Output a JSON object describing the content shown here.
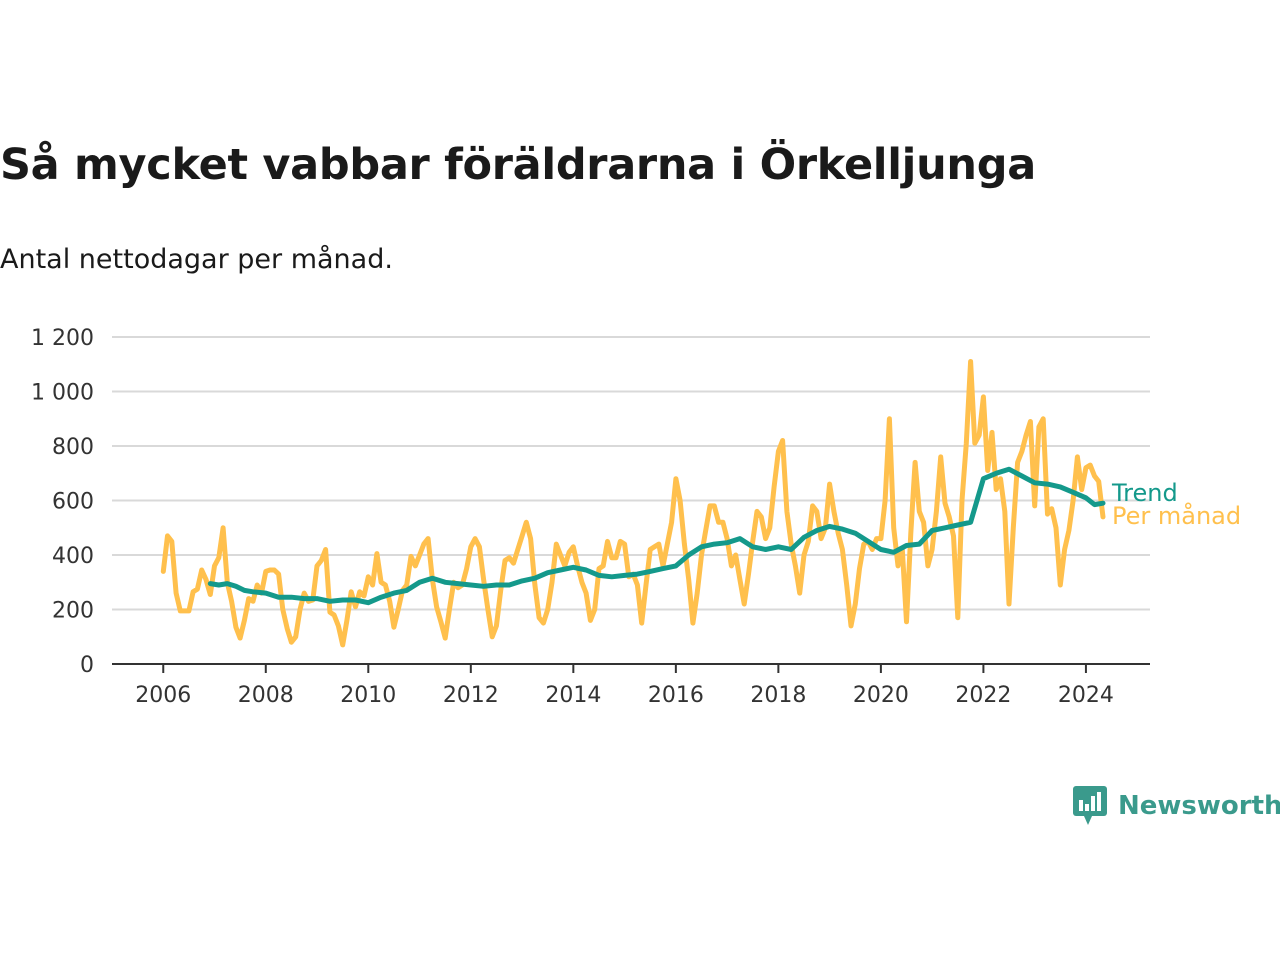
{
  "title": "Så mycket vabbar föräldrarna i Örkelljunga",
  "subtitle": "Antal nettodagar per månad.",
  "brand": {
    "name": "Newsworthy",
    "color": "#3a9a8c"
  },
  "chart_data": {
    "type": "line",
    "title": "Så mycket vabbar föräldrarna i Örkelljunga",
    "subtitle": "Antal nettodagar per månad.",
    "ylim": [
      0,
      1200
    ],
    "yticks": [
      0,
      200,
      400,
      600,
      800,
      1000,
      1200
    ],
    "ytick_labels": [
      "0",
      "200",
      "400",
      "600",
      "800",
      "1 000",
      "1 200"
    ],
    "xlim": [
      2005.0,
      2025.25
    ],
    "xticks": [
      2006,
      2008,
      2010,
      2012,
      2014,
      2016,
      2018,
      2020,
      2022,
      2024
    ],
    "xtick_labels": [
      "2006",
      "2008",
      "2010",
      "2012",
      "2014",
      "2016",
      "2018",
      "2020",
      "2022",
      "2024"
    ],
    "grid": true,
    "legend_position": "right",
    "series": [
      {
        "name": "Per månad",
        "color": "#ffc04d",
        "x": [
          2006.0,
          2006.083,
          2006.167,
          2006.25,
          2006.333,
          2006.417,
          2006.5,
          2006.583,
          2006.667,
          2006.75,
          2006.833,
          2006.917,
          2007.0,
          2007.083,
          2007.167,
          2007.25,
          2007.333,
          2007.417,
          2007.5,
          2007.583,
          2007.667,
          2007.75,
          2007.833,
          2007.917,
          2008.0,
          2008.083,
          2008.167,
          2008.25,
          2008.333,
          2008.417,
          2008.5,
          2008.583,
          2008.667,
          2008.75,
          2008.833,
          2008.917,
          2009.0,
          2009.083,
          2009.167,
          2009.25,
          2009.333,
          2009.417,
          2009.5,
          2009.583,
          2009.667,
          2009.75,
          2009.833,
          2009.917,
          2010.0,
          2010.083,
          2010.167,
          2010.25,
          2010.333,
          2010.417,
          2010.5,
          2010.583,
          2010.667,
          2010.75,
          2010.833,
          2010.917,
          2011.0,
          2011.083,
          2011.167,
          2011.25,
          2011.333,
          2011.417,
          2011.5,
          2011.583,
          2011.667,
          2011.75,
          2011.833,
          2011.917,
          2012.0,
          2012.083,
          2012.167,
          2012.25,
          2012.333,
          2012.417,
          2012.5,
          2012.583,
          2012.667,
          2012.75,
          2012.833,
          2012.917,
          2013.0,
          2013.083,
          2013.167,
          2013.25,
          2013.333,
          2013.417,
          2013.5,
          2013.583,
          2013.667,
          2013.75,
          2013.833,
          2013.917,
          2014.0,
          2014.083,
          2014.167,
          2014.25,
          2014.333,
          2014.417,
          2014.5,
          2014.583,
          2014.667,
          2014.75,
          2014.833,
          2014.917,
          2015.0,
          2015.083,
          2015.167,
          2015.25,
          2015.333,
          2015.417,
          2015.5,
          2015.583,
          2015.667,
          2015.75,
          2015.833,
          2015.917,
          2016.0,
          2016.083,
          2016.167,
          2016.25,
          2016.333,
          2016.417,
          2016.5,
          2016.583,
          2016.667,
          2016.75,
          2016.833,
          2016.917,
          2017.0,
          2017.083,
          2017.167,
          2017.25,
          2017.333,
          2017.417,
          2017.5,
          2017.583,
          2017.667,
          2017.75,
          2017.833,
          2017.917,
          2018.0,
          2018.083,
          2018.167,
          2018.25,
          2018.333,
          2018.417,
          2018.5,
          2018.583,
          2018.667,
          2018.75,
          2018.833,
          2018.917,
          2019.0,
          2019.083,
          2019.167,
          2019.25,
          2019.333,
          2019.417,
          2019.5,
          2019.583,
          2019.667,
          2019.75,
          2019.833,
          2019.917,
          2020.0,
          2020.083,
          2020.167,
          2020.25,
          2020.333,
          2020.417,
          2020.5,
          2020.583,
          2020.667,
          2020.75,
          2020.833,
          2020.917,
          2021.0,
          2021.083,
          2021.167,
          2021.25,
          2021.333,
          2021.417,
          2021.5,
          2021.583,
          2021.667,
          2021.75,
          2021.833,
          2021.917,
          2022.0,
          2022.083,
          2022.167,
          2022.25,
          2022.333,
          2022.417,
          2022.5,
          2022.583,
          2022.667,
          2022.75,
          2022.833,
          2022.917,
          2023.0,
          2023.083,
          2023.167,
          2023.25,
          2023.333,
          2023.417,
          2023.5,
          2023.583,
          2023.667,
          2023.75,
          2023.833,
          2023.917,
          2024.0,
          2024.083,
          2024.167,
          2024.25,
          2024.333
        ],
        "values": [
          340,
          470,
          450,
          260,
          195,
          195,
          195,
          265,
          275,
          345,
          310,
          255,
          360,
          390,
          500,
          300,
          230,
          135,
          95,
          160,
          240,
          230,
          290,
          260,
          340,
          345,
          345,
          330,
          200,
          130,
          80,
          100,
          200,
          260,
          230,
          235,
          360,
          380,
          420,
          190,
          180,
          140,
          70,
          160,
          265,
          210,
          265,
          250,
          320,
          290,
          405,
          300,
          290,
          230,
          135,
          200,
          270,
          290,
          395,
          360,
          400,
          440,
          460,
          310,
          210,
          155,
          95,
          200,
          300,
          280,
          290,
          350,
          430,
          460,
          430,
          310,
          200,
          100,
          140,
          270,
          380,
          390,
          370,
          420,
          470,
          520,
          460,
          290,
          170,
          150,
          200,
          300,
          440,
          400,
          360,
          410,
          430,
          360,
          300,
          260,
          160,
          200,
          350,
          360,
          450,
          390,
          390,
          450,
          440,
          320,
          330,
          290,
          150,
          290,
          420,
          430,
          440,
          360,
          440,
          520,
          680,
          600,
          440,
          310,
          150,
          260,
          400,
          490,
          580,
          580,
          520,
          520,
          460,
          360,
          400,
          310,
          220,
          330,
          450,
          560,
          540,
          460,
          500,
          650,
          780,
          820,
          560,
          440,
          360,
          260,
          400,
          450,
          580,
          560,
          460,
          500,
          660,
          560,
          480,
          420,
          290,
          140,
          220,
          350,
          440,
          450,
          420,
          460,
          460,
          600,
          900,
          500,
          360,
          420,
          155,
          480,
          740,
          560,
          520,
          360,
          420,
          560,
          760,
          590,
          540,
          470,
          170,
          600,
          810,
          1110,
          810,
          840,
          980,
          710,
          850,
          640,
          680,
          560,
          220,
          500,
          740,
          780,
          840,
          890,
          580,
          870,
          900,
          550,
          570,
          500,
          290,
          420,
          490,
          600,
          760,
          640,
          720,
          730,
          690,
          670,
          540
        ]
      },
      {
        "name": "Trend",
        "color": "#14998b",
        "x": [
          2006.917,
          2007.083,
          2007.25,
          2007.417,
          2007.583,
          2007.75,
          2008.0,
          2008.25,
          2008.5,
          2008.75,
          2009.0,
          2009.25,
          2009.5,
          2009.75,
          2010.0,
          2010.25,
          2010.5,
          2010.75,
          2011.0,
          2011.25,
          2011.5,
          2011.75,
          2012.0,
          2012.25,
          2012.5,
          2012.75,
          2013.0,
          2013.25,
          2013.5,
          2013.75,
          2014.0,
          2014.25,
          2014.5,
          2014.75,
          2015.0,
          2015.25,
          2015.5,
          2015.75,
          2016.0,
          2016.25,
          2016.5,
          2016.75,
          2017.0,
          2017.25,
          2017.5,
          2017.75,
          2018.0,
          2018.25,
          2018.5,
          2018.75,
          2019.0,
          2019.25,
          2019.5,
          2019.75,
          2020.0,
          2020.25,
          2020.5,
          2020.75,
          2021.0,
          2021.25,
          2021.5,
          2021.75,
          2022.0,
          2022.25,
          2022.5,
          2022.75,
          2023.0,
          2023.25,
          2023.5,
          2023.75,
          2024.0,
          2024.167,
          2024.333
        ],
        "values": [
          295,
          290,
          295,
          285,
          270,
          265,
          260,
          245,
          245,
          240,
          240,
          230,
          235,
          235,
          225,
          245,
          260,
          270,
          300,
          315,
          300,
          295,
          290,
          285,
          290,
          290,
          305,
          315,
          335,
          345,
          355,
          345,
          325,
          320,
          325,
          330,
          340,
          350,
          360,
          400,
          430,
          440,
          445,
          460,
          430,
          420,
          430,
          420,
          465,
          490,
          505,
          495,
          480,
          450,
          420,
          410,
          435,
          440,
          490,
          500,
          510,
          520,
          680,
          700,
          715,
          690,
          665,
          660,
          650,
          630,
          610,
          585,
          590
        ]
      }
    ]
  }
}
